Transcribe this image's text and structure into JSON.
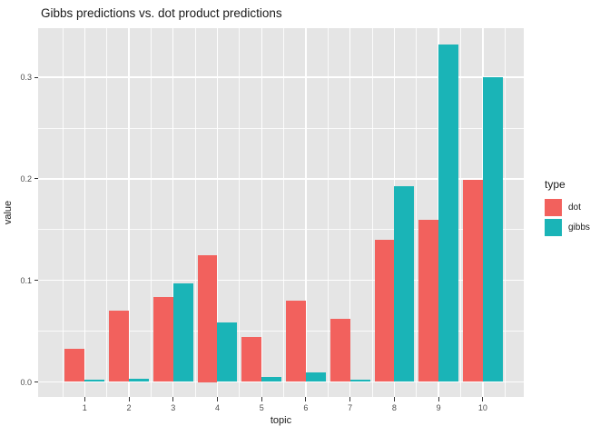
{
  "title": "Gibbs predictions vs. dot product predictions",
  "chart_data": {
    "type": "bar",
    "subtype": "grouped-dodged",
    "title": "Gibbs predictions vs. dot product predictions",
    "xlabel": "topic",
    "ylabel": "value",
    "categories": [
      "1",
      "2",
      "3",
      "4",
      "5",
      "6",
      "7",
      "8",
      "9",
      "10"
    ],
    "series": [
      {
        "name": "dot",
        "color": "#f2615d",
        "values": [
          0.033,
          0.07,
          0.084,
          0.125,
          0.044,
          0.08,
          0.062,
          0.14,
          0.16,
          0.199
        ]
      },
      {
        "name": "gibbs",
        "color": "#1ab4b7",
        "values": [
          0.002,
          0.003,
          0.097,
          0.059,
          0.005,
          0.009,
          0.002,
          0.193,
          0.332,
          0.3
        ]
      }
    ],
    "y_ticks": [
      0.0,
      0.1,
      0.2,
      0.3
    ],
    "y_tick_labels": [
      "0.0",
      "0.1",
      "0.2",
      "0.3"
    ],
    "y_minor_ticks": [
      0.05,
      0.15,
      0.25,
      0.35
    ],
    "ylim": [
      -0.015,
      0.348
    ],
    "grid": "on",
    "legend_position": "right"
  },
  "legend": {
    "title": "type",
    "items": [
      {
        "label": "dot",
        "color": "#f2615d"
      },
      {
        "label": "gibbs",
        "color": "#1ab4b7"
      }
    ]
  },
  "colors": {
    "panel_background": "#e5e5e5",
    "gridline": "#ffffff",
    "tick_text": "#4d4d4d",
    "axis_text": "#1a1a1a",
    "dot": "#f2615d",
    "gibbs": "#1ab4b7"
  }
}
